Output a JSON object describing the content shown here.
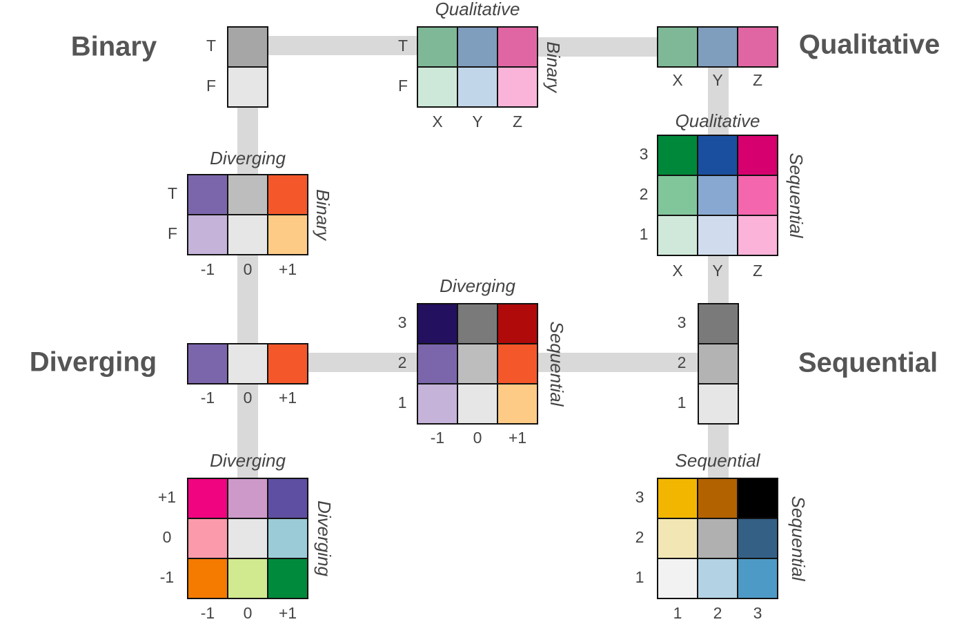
{
  "labels": {
    "binary": "Binary",
    "qualitative": "Qualitative",
    "diverging": "Diverging",
    "sequential": "Sequential"
  },
  "grids": [
    {
      "rows": [
        "T",
        "F"
      ],
      "cells": [
        [
          "#a6a6a6"
        ],
        [
          "#e6e6e6"
        ]
      ]
    },
    {
      "title": "Qualitative",
      "side": "Binary",
      "rows": [
        "T",
        "F"
      ],
      "cols": [
        "X",
        "Y",
        "Z"
      ],
      "cells": [
        [
          "#7fb896",
          "#7f9dbd",
          "#e066a3"
        ],
        [
          "#cde8d8",
          "#c2d6ea",
          "#fbb4d9"
        ]
      ]
    },
    {
      "cols": [
        "X",
        "Y",
        "Z"
      ],
      "cells": [
        [
          "#7fb896",
          "#7f9dbd",
          "#e066a3"
        ]
      ]
    },
    {
      "title": "Qualitative",
      "side": "Sequential",
      "rows": [
        "3",
        "2",
        "1"
      ],
      "cols": [
        "X",
        "Y",
        "Z"
      ],
      "cells": [
        [
          "#00883a",
          "#1a4fa0",
          "#d6006e"
        ],
        [
          "#80c69a",
          "#88a8d1",
          "#f466ae"
        ],
        [
          "#cfe8da",
          "#d0dcee",
          "#fbb3d9"
        ]
      ]
    },
    {
      "title": "Diverging",
      "side": "Binary",
      "rows": [
        "T",
        "F"
      ],
      "cols": [
        "-1",
        "0",
        "+1"
      ],
      "cells": [
        [
          "#7b66ab",
          "#bdbdbd",
          "#f4572a"
        ],
        [
          "#c5b3da",
          "#e6e6e6",
          "#fdcb86"
        ]
      ]
    },
    {
      "cols": [
        "-1",
        "0",
        "+1"
      ],
      "cells": [
        [
          "#7b66ab",
          "#e6e6e6",
          "#f4572a"
        ]
      ]
    },
    {
      "title": "Diverging",
      "side": "Sequential",
      "rows": [
        "3",
        "2",
        "1"
      ],
      "cols": [
        "-1",
        "0",
        "+1"
      ],
      "cells": [
        [
          "#23105e",
          "#7a7a7a",
          "#b00a0a"
        ],
        [
          "#7b66ab",
          "#bdbdbd",
          "#f4572a"
        ],
        [
          "#c5b3da",
          "#e6e6e6",
          "#fdcb86"
        ]
      ]
    },
    {
      "rows": [
        "3",
        "2",
        "1"
      ],
      "cells": [
        [
          "#7a7a7a"
        ],
        [
          "#b3b3b3"
        ],
        [
          "#e6e6e6"
        ]
      ]
    },
    {
      "title": "Diverging",
      "side": "Diverging",
      "rows": [
        "+1",
        "0",
        "-1"
      ],
      "cols": [
        "-1",
        "0",
        "+1"
      ],
      "cells": [
        [
          "#f0047f",
          "#cc99c9",
          "#5e4fa2"
        ],
        [
          "#fb9aaa",
          "#e6e6e6",
          "#9ccbd8"
        ],
        [
          "#f47a00",
          "#d1e98f",
          "#008a3c"
        ]
      ]
    },
    {
      "title": "Sequential",
      "side": "Sequential",
      "rows": [
        "3",
        "2",
        "1"
      ],
      "cols": [
        "1",
        "2",
        "3"
      ],
      "cells": [
        [
          "#f2b600",
          "#b36200",
          "#000000"
        ],
        [
          "#f2e6b4",
          "#b0b0b0",
          "#346086"
        ],
        [
          "#f2f2f2",
          "#b3d2e4",
          "#4d9ac6"
        ]
      ]
    }
  ]
}
